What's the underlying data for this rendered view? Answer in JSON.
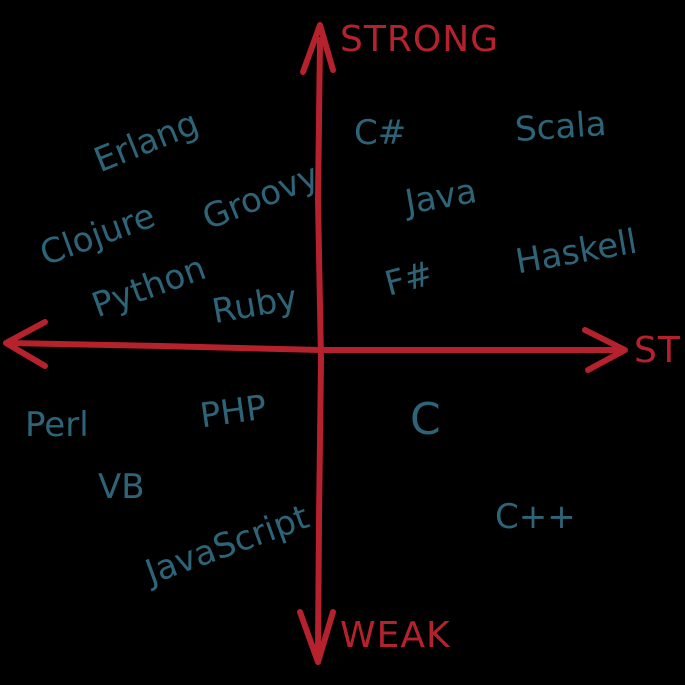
{
  "axes": {
    "top": "STRONG",
    "bottom": "WEAK",
    "right": "ST"
  },
  "languages": {
    "erlang": "Erlang",
    "clojure": "Clojure",
    "groovy": "Groovy",
    "python": "Python",
    "ruby": "Ruby",
    "csharp": "C#",
    "scala": "Scala",
    "java": "Java",
    "haskell": "Haskell",
    "fsharp": "F#",
    "perl": "Perl",
    "php": "PHP",
    "vb": "VB",
    "javascript": "JavaScript",
    "c": "C",
    "cpp": "C++"
  },
  "colors": {
    "axis": "#b5222d",
    "language": "#2e6478",
    "background": "#000000"
  }
}
